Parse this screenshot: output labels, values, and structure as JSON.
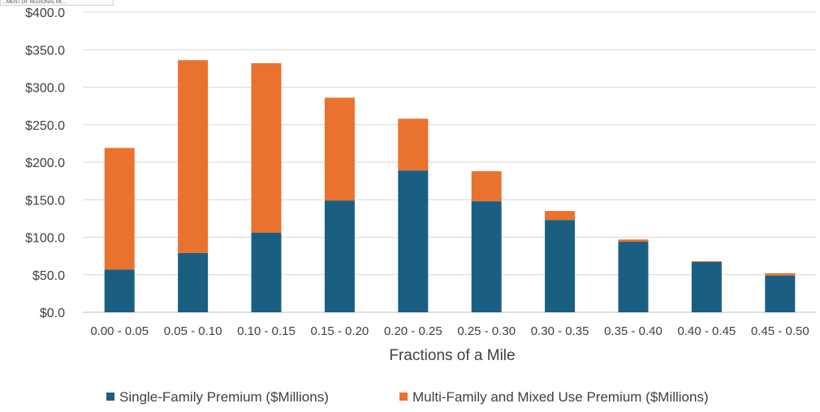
{
  "header": {
    "clipped_text": "...MENT OF REGIONAL MI..."
  },
  "chart_data": {
    "type": "bar",
    "stacked": true,
    "title": "",
    "xlabel": "Fractions of a Mile",
    "ylabel": "",
    "ylim": [
      0,
      400
    ],
    "yticks": [
      0,
      50,
      100,
      150,
      200,
      250,
      300,
      350,
      400
    ],
    "ytick_labels": [
      "$0.0",
      "$50.0",
      "$100.0",
      "$150.0",
      "$200.0",
      "$250.0",
      "$300.0",
      "$350.0",
      "$400.0"
    ],
    "categories": [
      "0.00 - 0.05",
      "0.05 - 0.10",
      "0.10 - 0.15",
      "0.15 - 0.20",
      "0.20 - 0.25",
      "0.25 - 0.30",
      "0.30 - 0.35",
      "0.35 - 0.40",
      "0.40 - 0.45",
      "0.45 - 0.50"
    ],
    "series": [
      {
        "name": "Single-Family Premium ($Millions)",
        "color": "#1a5e82",
        "values": [
          57,
          79,
          106,
          149,
          189,
          148,
          123,
          94,
          67,
          49
        ]
      },
      {
        "name": "Multi-Family and Mixed Use Premium ($Millions)",
        "color": "#e9722e",
        "values": [
          162,
          257,
          226,
          137,
          69,
          40,
          12,
          3,
          1,
          3
        ]
      }
    ],
    "grid": true,
    "legend_position": "bottom"
  }
}
